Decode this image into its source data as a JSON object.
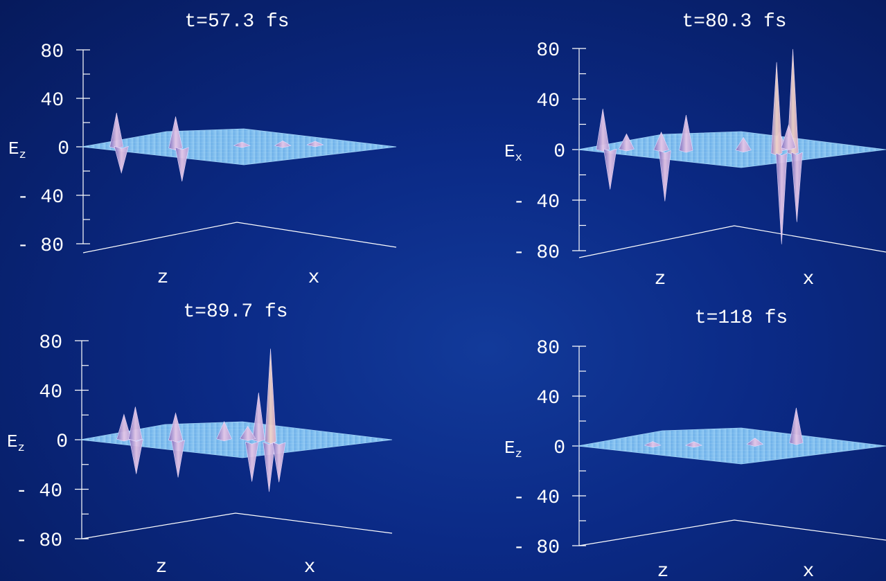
{
  "chart_data": [
    {
      "type": "surface",
      "title": "t=57.3 fs",
      "zlabel": "E",
      "zlabel_sub": "z",
      "xlabel": "z",
      "ylabel": "x",
      "zlim": [
        -80,
        80
      ],
      "zticks": [
        "80",
        "40",
        "0",
        "- 40",
        "- 80"
      ],
      "peaks": [
        {
          "z": 0.12,
          "x": 0.05,
          "value": 28
        },
        {
          "z": 0.13,
          "x": 0.08,
          "value": -22
        },
        {
          "z": 0.36,
          "x": 0.05,
          "value": 26
        },
        {
          "z": 0.37,
          "x": 0.1,
          "value": -28
        },
        {
          "z": 0.55,
          "x": 0.3,
          "value": 3
        },
        {
          "z": 0.7,
          "x": 0.35,
          "value": 4
        },
        {
          "z": 0.8,
          "x": 0.45,
          "value": 3
        }
      ]
    },
    {
      "type": "surface",
      "title": "t=80.3 fs",
      "zlabel": "E",
      "zlabel_sub": "x",
      "xlabel": "z",
      "ylabel": "x",
      "zlim": [
        -80,
        80
      ],
      "zticks": [
        "80",
        "40",
        "0",
        "- 40",
        "- 80"
      ],
      "peaks": [
        {
          "z": 0.08,
          "x": 0.05,
          "value": 32
        },
        {
          "z": 0.1,
          "x": 0.08,
          "value": -32
        },
        {
          "z": 0.16,
          "x": 0.1,
          "value": 12
        },
        {
          "z": 0.3,
          "x": 0.1,
          "value": 14
        },
        {
          "z": 0.33,
          "x": 0.05,
          "value": -40
        },
        {
          "z": 0.4,
          "x": 0.1,
          "value": 28
        },
        {
          "z": 0.6,
          "x": 0.2,
          "value": 10
        },
        {
          "z": 0.72,
          "x": 0.28,
          "value": 14
        },
        {
          "z": 0.78,
          "x": 0.05,
          "value": 72
        },
        {
          "z": 0.8,
          "x": 0.05,
          "value": -72
        },
        {
          "z": 0.83,
          "x": 0.1,
          "value": 82
        },
        {
          "z": 0.84,
          "x": 0.12,
          "value": -55
        },
        {
          "z": 0.72,
          "x": 0.4,
          "value": 18
        }
      ]
    },
    {
      "type": "surface",
      "title": "t=89.7 fs",
      "zlabel": "E",
      "zlabel_sub": "z",
      "xlabel": "z",
      "ylabel": "x",
      "zlim": [
        -80,
        80
      ],
      "zticks": [
        "80",
        "40",
        "0",
        "- 40",
        "- 80"
      ],
      "peaks": [
        {
          "z": 0.14,
          "x": 0.1,
          "value": 20
        },
        {
          "z": 0.18,
          "x": 0.12,
          "value": 26
        },
        {
          "z": 0.19,
          "x": 0.1,
          "value": -28
        },
        {
          "z": 0.35,
          "x": 0.1,
          "value": 22
        },
        {
          "z": 0.36,
          "x": 0.1,
          "value": -30
        },
        {
          "z": 0.5,
          "x": 0.25,
          "value": 14
        },
        {
          "z": 0.64,
          "x": 0.25,
          "value": 38
        },
        {
          "z": 0.66,
          "x": 0.1,
          "value": -32
        },
        {
          "z": 0.72,
          "x": 0.15,
          "value": 75
        },
        {
          "z": 0.73,
          "x": 0.1,
          "value": -40
        },
        {
          "z": 0.77,
          "x": 0.1,
          "value": -32
        },
        {
          "z": 0.58,
          "x": 0.3,
          "value": 10
        }
      ]
    },
    {
      "type": "surface",
      "title": "t=118 fs",
      "zlabel": "E",
      "zlabel_sub": "z",
      "xlabel": "z",
      "ylabel": "x",
      "zlim": [
        -80,
        80
      ],
      "zticks": [
        "80",
        "40",
        "0",
        "- 40",
        "- 80"
      ],
      "peaks": [
        {
          "z": 0.72,
          "x": 0.5,
          "value": 28
        },
        {
          "z": 0.6,
          "x": 0.35,
          "value": 5
        },
        {
          "z": 0.4,
          "x": 0.2,
          "value": 3
        },
        {
          "z": 0.25,
          "x": 0.15,
          "value": 3
        }
      ]
    }
  ]
}
